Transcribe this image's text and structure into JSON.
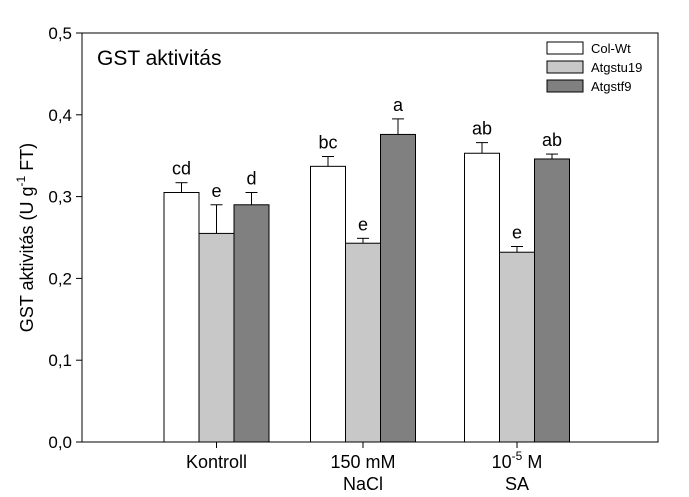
{
  "chart_data": {
    "type": "bar",
    "title": "GST aktivitás",
    "ylabel": {
      "main": "GST aktivitás (U g",
      "sup": "-1",
      "end": " FT)"
    },
    "ylim": [
      0,
      0.5
    ],
    "yticks": [
      {
        "value": 0.0,
        "label": "0,0"
      },
      {
        "value": 0.1,
        "label": "0,1"
      },
      {
        "value": 0.2,
        "label": "0,2"
      },
      {
        "value": 0.3,
        "label": "0,3"
      },
      {
        "value": 0.4,
        "label": "0,4"
      },
      {
        "value": 0.5,
        "label": "0,5"
      }
    ],
    "categories": [
      {
        "lines": [
          {
            "text": "Kontroll"
          }
        ]
      },
      {
        "lines": [
          {
            "text": "150 mM"
          },
          {
            "text": "NaCl"
          }
        ]
      },
      {
        "lines": [
          {
            "text": "10",
            "sup": "-5",
            "after": " M"
          },
          {
            "text": "SA"
          }
        ]
      }
    ],
    "series": [
      {
        "name": "Col-Wt",
        "color": "#ffffff",
        "values": [
          0.305,
          0.337,
          0.353
        ],
        "errors": [
          0.012,
          0.012,
          0.013
        ],
        "letters": [
          "cd",
          "bc",
          "ab"
        ]
      },
      {
        "name": "Atgstu19",
        "color": "#c8c8c8",
        "values": [
          0.255,
          0.243,
          0.232
        ],
        "errors": [
          0.035,
          0.006,
          0.007
        ],
        "letters": [
          "e",
          "e",
          "e"
        ]
      },
      {
        "name": "Atgstf9",
        "color": "#808080",
        "values": [
          0.29,
          0.376,
          0.346
        ],
        "errors": [
          0.015,
          0.019,
          0.006
        ],
        "letters": [
          "d",
          "a",
          "ab"
        ]
      }
    ],
    "legend": "top-right",
    "grid": false
  }
}
